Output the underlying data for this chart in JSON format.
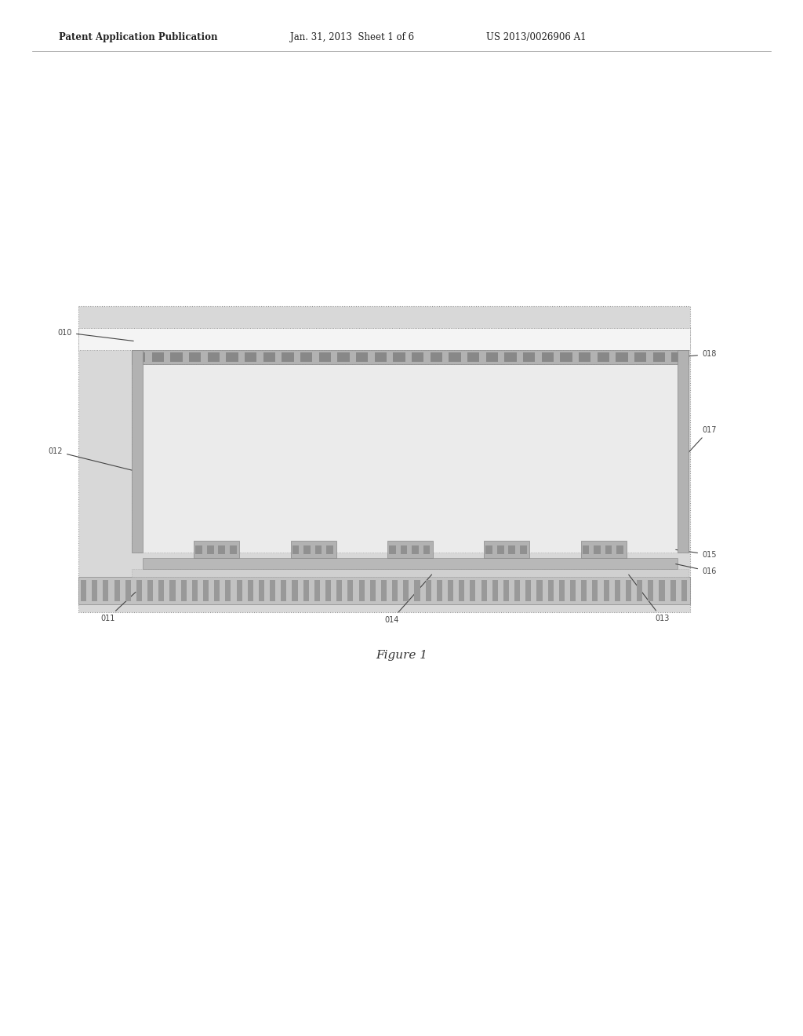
{
  "bg_color": "#ffffff",
  "header_text_left": "Patent Application Publication",
  "header_text_mid": "Jan. 31, 2013  Sheet 1 of 6",
  "header_text_right": "US 2013/0026906 A1",
  "header_fontsize": 8.5,
  "fig_title": "Figure 1",
  "fig_title_fontsize": 11,
  "label_fontsize": 7.0,
  "label_color": "#444444",
  "outer_bg": "#d8d8d8",
  "inner_space_bg": "#eaeaea",
  "top_glass_color": "#f2f2f2",
  "top_phosphor_color": "#b0b0b0",
  "spacer_wall_color": "#b0b0b0",
  "gate_color": "#b0b0b0",
  "emitter_layer_color": "#a8a8a8",
  "substrate_color": "#c0c0c0",
  "thin_film_color": "#d4d4d4"
}
